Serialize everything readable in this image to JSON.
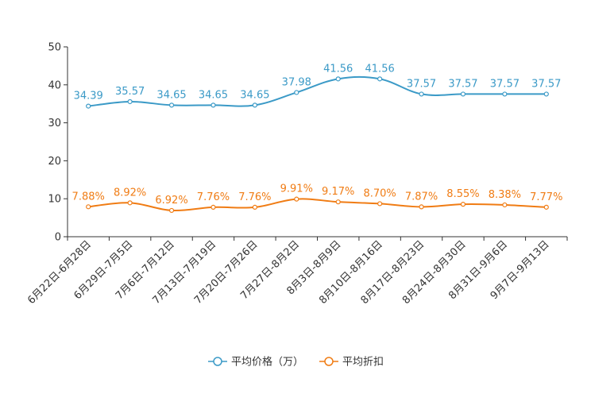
{
  "chart_data": {
    "type": "line",
    "categories": [
      "6月22日-6月28日",
      "6月29日-7月5日",
      "7月6日-7月12日",
      "7月13日-7月19日",
      "7月20日-7月26日",
      "7月27日-8月2日",
      "8月3日-8月9日",
      "8月10日-8月16日",
      "8月17日-8月23日",
      "8月24日-8月30日",
      "8月31日-9月6日",
      "9月7日-9月13日"
    ],
    "ylim": [
      0,
      50
    ],
    "yticks": [
      0,
      10,
      20,
      30,
      40,
      50
    ],
    "series": [
      {
        "name": "平均价格（万）",
        "color": "#3b9ac7",
        "values": [
          34.39,
          35.57,
          34.65,
          34.65,
          34.65,
          37.98,
          41.56,
          41.56,
          37.57,
          37.57,
          37.57,
          37.57
        ],
        "labels": [
          "34.39",
          "35.57",
          "34.65",
          "34.65",
          "34.65",
          "37.98",
          "41.56",
          "41.56",
          "37.57",
          "37.57",
          "37.57",
          "37.57"
        ]
      },
      {
        "name": "平均折扣",
        "color": "#f07c14",
        "values": [
          7.88,
          8.92,
          6.92,
          7.76,
          7.76,
          9.91,
          9.17,
          8.7,
          7.87,
          8.55,
          8.38,
          7.77
        ],
        "labels": [
          "7.88%",
          "8.92%",
          "6.92%",
          "7.76%",
          "7.76%",
          "9.91%",
          "9.17%",
          "8.70%",
          "7.87%",
          "8.55%",
          "8.38%",
          "7.77%"
        ]
      }
    ]
  }
}
